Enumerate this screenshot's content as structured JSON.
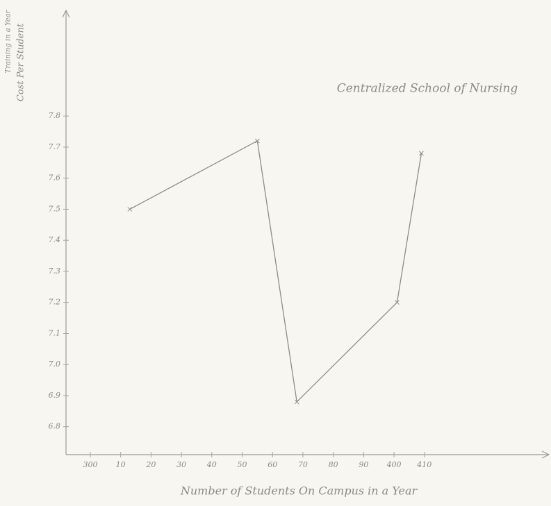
{
  "chart_data": {
    "type": "line",
    "title": "Centralized School of Nursing",
    "x_label": "Number of Students On Campus in a Year",
    "y_label": [
      "Cost Per Student",
      "Training in a Year"
    ],
    "x": [
      313,
      355,
      368,
      401,
      409
    ],
    "series": [
      {
        "name": null,
        "color": "#8c8c88",
        "values": [
          7.5,
          7.72,
          6.88,
          7.2,
          7.68
        ]
      }
    ],
    "xlim": [
      292,
      451
    ],
    "xticks": [
      {
        "value": 300,
        "label": "300"
      },
      {
        "value": 310,
        "label": "10"
      },
      {
        "value": 320,
        "label": "20"
      },
      {
        "value": 330,
        "label": "30"
      },
      {
        "value": 340,
        "label": "40"
      },
      {
        "value": 350,
        "label": "50"
      },
      {
        "value": 360,
        "label": "60"
      },
      {
        "value": 370,
        "label": "70"
      },
      {
        "value": 380,
        "label": "80"
      },
      {
        "value": 390,
        "label": "90"
      },
      {
        "value": 400,
        "label": "400"
      },
      {
        "value": 410,
        "label": "410"
      }
    ],
    "ylim": [
      6.71,
      8.14
    ],
    "yticks": [
      6.8,
      6.9,
      {
        "value": 7,
        "label": "7.0"
      },
      7.1,
      7.2,
      7.3,
      7.4,
      7.5,
      7.6,
      7.7,
      7.8
    ],
    "grid": false
  }
}
